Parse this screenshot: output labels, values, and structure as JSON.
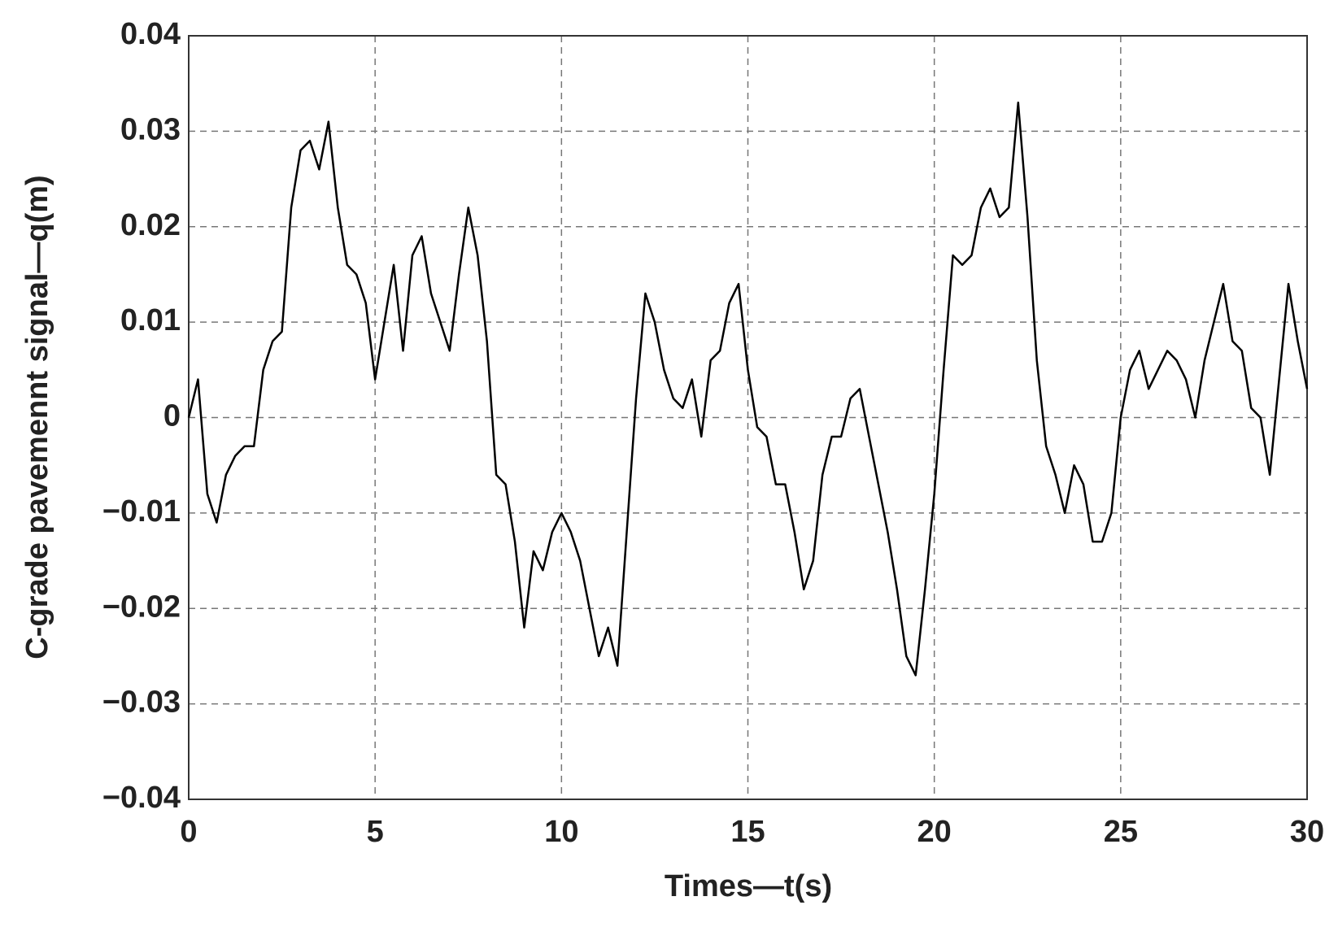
{
  "chart_data": {
    "type": "line",
    "xlabel": "Times—t(s)",
    "ylabel": "C-grade pavemennt signal—q(m)",
    "x": [
      0,
      0.25,
      0.5,
      0.75,
      1,
      1.25,
      1.5,
      1.75,
      2,
      2.25,
      2.5,
      2.75,
      3,
      3.25,
      3.5,
      3.75,
      4,
      4.25,
      4.5,
      4.75,
      5,
      5.25,
      5.5,
      5.75,
      6,
      6.25,
      6.5,
      6.75,
      7,
      7.25,
      7.5,
      7.75,
      8,
      8.25,
      8.5,
      8.75,
      9,
      9.25,
      9.5,
      9.75,
      10,
      10.25,
      10.5,
      10.75,
      11,
      11.25,
      11.5,
      11.75,
      12,
      12.25,
      12.5,
      12.75,
      13,
      13.25,
      13.5,
      13.75,
      14,
      14.25,
      14.5,
      14.75,
      15,
      15.25,
      15.5,
      15.75,
      16,
      16.25,
      16.5,
      16.75,
      17,
      17.25,
      17.5,
      17.75,
      18,
      18.25,
      18.5,
      18.75,
      19,
      19.25,
      19.5,
      19.75,
      20,
      20.25,
      20.5,
      20.75,
      21,
      21.25,
      21.5,
      21.75,
      22,
      22.25,
      22.5,
      22.75,
      23,
      23.25,
      23.5,
      23.75,
      24,
      24.25,
      24.5,
      24.75,
      25,
      25.25,
      25.5,
      25.75,
      26,
      26.25,
      26.5,
      26.75,
      27,
      27.25,
      27.5,
      27.75,
      28,
      28.25,
      28.5,
      28.75,
      29,
      29.25,
      29.5,
      29.75,
      30
    ],
    "series": [
      {
        "color": "#000000",
        "values": [
          0,
          0.004,
          -0.008,
          -0.011,
          -0.006,
          -0.004,
          -0.003,
          -0.003,
          0.005,
          0.008,
          0.009,
          0.022,
          0.028,
          0.029,
          0.026,
          0.031,
          0.022,
          0.016,
          0.015,
          0.012,
          0.004,
          0.01,
          0.016,
          0.007,
          0.017,
          0.019,
          0.013,
          0.01,
          0.007,
          0.015,
          0.022,
          0.017,
          0.008,
          -0.006,
          -0.007,
          -0.013,
          -0.022,
          -0.014,
          -0.016,
          -0.012,
          -0.01,
          -0.012,
          -0.015,
          -0.02,
          -0.025,
          -0.022,
          -0.026,
          -0.012,
          0.002,
          0.013,
          0.01,
          0.005,
          0.002,
          0.001,
          0.004,
          -0.002,
          0.006,
          0.007,
          0.012,
          0.014,
          0.005,
          -0.001,
          -0.002,
          -0.007,
          -0.007,
          -0.012,
          -0.018,
          -0.015,
          -0.006,
          -0.002,
          -0.002,
          0.002,
          0.003,
          -0.002,
          -0.007,
          -0.012,
          -0.018,
          -0.025,
          -0.027,
          -0.018,
          -0.008,
          0.005,
          0.017,
          0.016,
          0.017,
          0.022,
          0.024,
          0.021,
          0.022,
          0.033,
          0.021,
          0.006,
          -0.003,
          -0.006,
          -0.01,
          -0.005,
          -0.007,
          -0.013,
          -0.013,
          -0.01,
          0,
          0.005,
          0.007,
          0.003,
          0.005,
          0.007,
          0.006,
          0.004,
          0,
          0.006,
          0.01,
          0.014,
          0.008,
          0.007,
          0.001,
          0,
          -0.006,
          0.004,
          0.014,
          0.008,
          0.003
        ]
      }
    ],
    "xlim": [
      0,
      30
    ],
    "xticks": [
      0,
      5,
      10,
      15,
      20,
      25,
      30
    ],
    "ylim": [
      -0.04,
      0.04
    ],
    "yticks": [
      {
        "value": -0.04,
        "label": "−0.04"
      },
      {
        "value": -0.03,
        "label": "−0.03"
      },
      {
        "value": -0.02,
        "label": "−0.02"
      },
      {
        "value": -0.01,
        "label": "−0.01"
      },
      0,
      0.01,
      0.02,
      0.03,
      0.04
    ],
    "grid": true
  }
}
